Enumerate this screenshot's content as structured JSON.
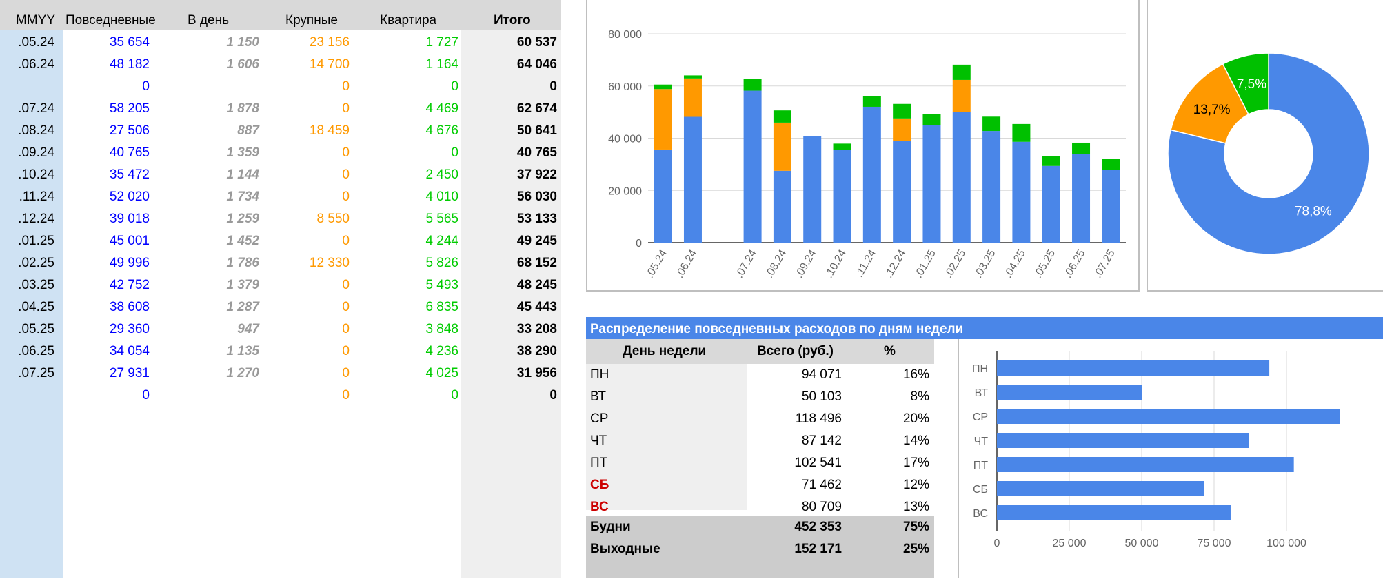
{
  "main_table": {
    "headers": {
      "mmyy": "MMYY",
      "everyday": "Повседневные",
      "per_day": "В день",
      "large": "Крупные",
      "apartment": "Квартира",
      "total": "Итого"
    },
    "rows": [
      {
        "mmyy": ".05.24",
        "everyday": "35 654",
        "per_day": "1 150",
        "large": "23 156",
        "apartment": "1 727",
        "total": "60 537"
      },
      {
        "mmyy": ".06.24",
        "everyday": "48 182",
        "per_day": "1 606",
        "large": "14 700",
        "apartment": "1 164",
        "total": "64 046"
      },
      {
        "mmyy": "",
        "everyday": "0",
        "per_day": "",
        "large": "0",
        "apartment": "0",
        "total": "0"
      },
      {
        "mmyy": ".07.24",
        "everyday": "58 205",
        "per_day": "1 878",
        "large": "0",
        "apartment": "4 469",
        "total": "62 674"
      },
      {
        "mmyy": ".08.24",
        "everyday": "27 506",
        "per_day": "887",
        "large": "18 459",
        "apartment": "4 676",
        "total": "50 641"
      },
      {
        "mmyy": ".09.24",
        "everyday": "40 765",
        "per_day": "1 359",
        "large": "0",
        "apartment": "0",
        "total": "40 765"
      },
      {
        "mmyy": ".10.24",
        "everyday": "35 472",
        "per_day": "1 144",
        "large": "0",
        "apartment": "2 450",
        "total": "37 922"
      },
      {
        "mmyy": ".11.24",
        "everyday": "52 020",
        "per_day": "1 734",
        "large": "0",
        "apartment": "4 010",
        "total": "56 030"
      },
      {
        "mmyy": ".12.24",
        "everyday": "39 018",
        "per_day": "1 259",
        "large": "8 550",
        "apartment": "5 565",
        "total": "53 133"
      },
      {
        "mmyy": ".01.25",
        "everyday": "45 001",
        "per_day": "1 452",
        "large": "0",
        "apartment": "4 244",
        "total": "49 245"
      },
      {
        "mmyy": ".02.25",
        "everyday": "49 996",
        "per_day": "1 786",
        "large": "12 330",
        "apartment": "5 826",
        "total": "68 152"
      },
      {
        "mmyy": ".03.25",
        "everyday": "42 752",
        "per_day": "1 379",
        "large": "0",
        "apartment": "5 493",
        "total": "48 245"
      },
      {
        "mmyy": ".04.25",
        "everyday": "38 608",
        "per_day": "1 287",
        "large": "0",
        "apartment": "6 835",
        "total": "45 443"
      },
      {
        "mmyy": ".05.25",
        "everyday": "29 360",
        "per_day": "947",
        "large": "0",
        "apartment": "3 848",
        "total": "33 208"
      },
      {
        "mmyy": ".06.25",
        "everyday": "34 054",
        "per_day": "1 135",
        "large": "0",
        "apartment": "4 236",
        "total": "38 290"
      },
      {
        "mmyy": ".07.25",
        "everyday": "27 931",
        "per_day": "1 270",
        "large": "0",
        "apartment": "4 025",
        "total": "31 956"
      },
      {
        "mmyy": "",
        "everyday": "0",
        "per_day": "",
        "large": "0",
        "apartment": "0",
        "total": "0"
      }
    ]
  },
  "weekday_section": {
    "title": "Распределение повседневных расходов по дням недели",
    "headers": {
      "day": "День недели",
      "total": "Всего (руб.)",
      "pct": "%"
    },
    "rows": [
      {
        "day": "ПН",
        "total": "94 071",
        "pct": "16%",
        "weekend": false
      },
      {
        "day": "ВТ",
        "total": "50 103",
        "pct": "8%",
        "weekend": false
      },
      {
        "day": "СР",
        "total": "118 496",
        "pct": "20%",
        "weekend": false
      },
      {
        "day": "ЧТ",
        "total": "87 142",
        "pct": "14%",
        "weekend": false
      },
      {
        "day": "ПТ",
        "total": "102 541",
        "pct": "17%",
        "weekend": false
      },
      {
        "day": "СБ",
        "total": "71 462",
        "pct": "12%",
        "weekend": true
      },
      {
        "day": "ВС",
        "total": "80 709",
        "pct": "13%",
        "weekend": true
      }
    ],
    "summary": [
      {
        "label": "Будни",
        "total": "452 353",
        "pct": "75%"
      },
      {
        "label": "Выходные",
        "total": "152 171",
        "pct": "25%"
      }
    ]
  },
  "colors": {
    "everyday": "#4a86e8",
    "large": "#ff9900",
    "apartment": "#00c000",
    "title_bar": "#4a86e8",
    "weekend_text": "#cc0000"
  },
  "chart_data": [
    {
      "type": "bar",
      "stacked": true,
      "categories": [
        ".05.24",
        ".06.24",
        "",
        ".07.24",
        ".08.24",
        ".09.24",
        ".10.24",
        ".11.24",
        ".12.24",
        ".01.25",
        ".02.25",
        ".03.25",
        ".04.25",
        ".05.25",
        ".06.25",
        ".07.25"
      ],
      "series": [
        {
          "values": [
            35654,
            48182,
            0,
            58205,
            27506,
            40765,
            35472,
            52020,
            39018,
            45001,
            49996,
            42752,
            38608,
            29360,
            34054,
            27931
          ],
          "color": "#4a86e8"
        },
        {
          "values": [
            23156,
            14700,
            0,
            0,
            18459,
            0,
            0,
            0,
            8550,
            0,
            12330,
            0,
            0,
            0,
            0,
            0
          ],
          "color": "#ff9900"
        },
        {
          "values": [
            1727,
            1164,
            0,
            4469,
            4676,
            0,
            2450,
            4010,
            5565,
            4244,
            5826,
            5493,
            6835,
            3848,
            4236,
            4025
          ],
          "color": "#00c000"
        }
      ],
      "ylim": [
        0,
        80000
      ],
      "yticks": [
        0,
        20000,
        40000,
        60000,
        80000
      ],
      "ytick_labels": [
        "0",
        "20 000",
        "40 000",
        "60 000",
        "80 000"
      ],
      "grid": true
    },
    {
      "type": "pie",
      "donut": true,
      "slices": [
        {
          "value": 78.8,
          "label": "78,8%",
          "color": "#4a86e8"
        },
        {
          "value": 13.7,
          "label": "13,7%",
          "color": "#ff9900"
        },
        {
          "value": 7.5,
          "label": "7,5%",
          "color": "#00c000"
        }
      ]
    },
    {
      "type": "bar",
      "orientation": "horizontal",
      "categories": [
        "ПН",
        "ВТ",
        "СР",
        "ЧТ",
        "ПТ",
        "СБ",
        "ВС"
      ],
      "values": [
        94071,
        50103,
        118496,
        87142,
        102541,
        71462,
        80709
      ],
      "xlim": [
        0,
        125000
      ],
      "xticks": [
        0,
        25000,
        50000,
        75000,
        100000
      ],
      "xtick_labels": [
        "0",
        "25 000",
        "50 000",
        "75 000",
        "100 000"
      ],
      "color": "#4a86e8",
      "grid": true
    }
  ]
}
